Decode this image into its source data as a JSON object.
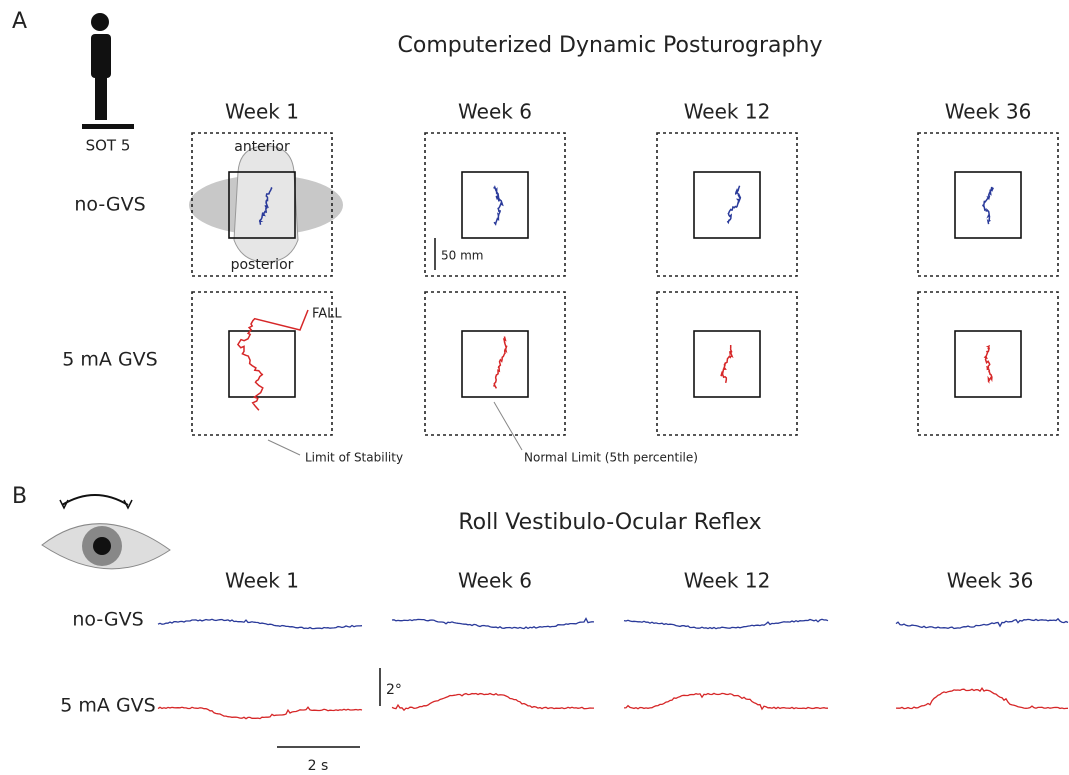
{
  "panel_a": {
    "label": "A",
    "title": "Computerized Dynamic Posturography",
    "icon_label": "SOT 5",
    "columns": [
      "Week 1",
      "Week 6",
      "Week 12",
      "Week 36"
    ],
    "rows": [
      "no-GVS",
      "5 mA GVS"
    ],
    "annotations": {
      "anterior": "anterior",
      "posterior": "posterior",
      "scale": "50 mm",
      "fall": "FALL",
      "limit_stability": "Limit of Stability",
      "normal_limit": "Normal Limit (5th percentile)"
    }
  },
  "panel_b": {
    "label": "B",
    "title": "Roll Vestibulo-Ocular  Reflex",
    "columns": [
      "Week 1",
      "Week 6",
      "Week 12",
      "Week 36"
    ],
    "rows": [
      "no-GVS",
      "5 mA GVS"
    ],
    "scale_y": "2°",
    "scale_x": "2 s"
  }
}
